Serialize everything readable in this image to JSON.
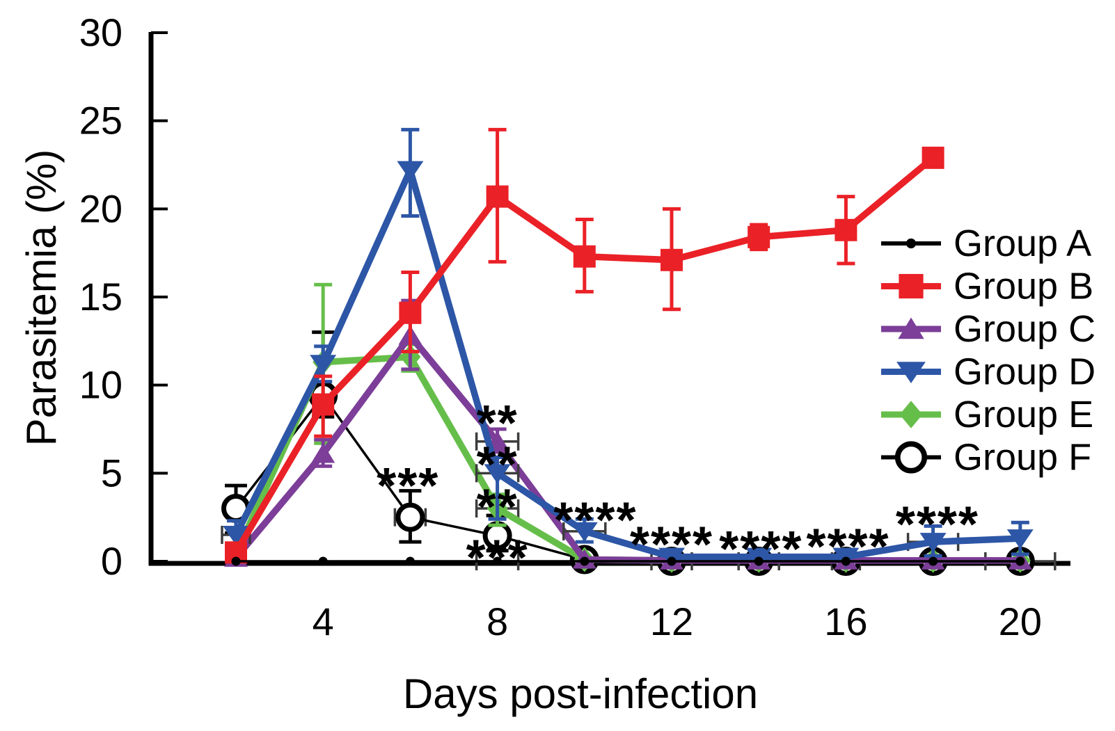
{
  "chart_data": {
    "type": "line",
    "x": [
      2,
      4,
      6,
      8,
      10,
      12,
      14,
      16,
      18,
      20
    ],
    "xlabel": "Days post-infection",
    "ylabel": "Parasitemia (%)",
    "xticks": [
      4,
      8,
      12,
      16,
      20
    ],
    "yticks": [
      0,
      5,
      10,
      15,
      20,
      25,
      30
    ],
    "ylim": [
      0,
      30
    ],
    "grid": false,
    "legend_position": "right",
    "series": [
      {
        "name": "Group A",
        "color": "#000000",
        "marker": "dot",
        "line_width": 3.5,
        "values": [
          0,
          0,
          0,
          0,
          0,
          0,
          0,
          0,
          0,
          0
        ],
        "err": [
          null,
          null,
          null,
          null,
          null,
          null,
          null,
          null,
          null,
          null
        ],
        "xerr": [
          null,
          null,
          null,
          30,
          null,
          null,
          null,
          null,
          null,
          null
        ]
      },
      {
        "name": "Group B",
        "color": "#EA2127",
        "marker": "square",
        "line_width": 9.5,
        "values": [
          0.5,
          8.9,
          14.1,
          20.7,
          17.3,
          17.1,
          18.4,
          18.8,
          22.9,
          null
        ],
        "err": [
          null,
          [
            7.1,
            10.5
          ],
          [
            11.9,
            16.4
          ],
          [
            17.0,
            24.5
          ],
          [
            15.3,
            19.4
          ],
          [
            14.3,
            20.0
          ],
          [
            17.7,
            19.1
          ],
          [
            16.9,
            20.7
          ],
          null,
          null
        ],
        "xerr": [
          null,
          null,
          null,
          null,
          null,
          null,
          null,
          null,
          null,
          null
        ]
      },
      {
        "name": "Group C",
        "color": "#7C3E98",
        "marker": "triangle-up",
        "line_width": 9.5,
        "values": [
          0.2,
          6.1,
          12.8,
          6.8,
          0.1,
          0.05,
          0.05,
          0.05,
          0.05,
          0.05
        ],
        "err": [
          null,
          [
            5.4,
            6.9
          ],
          [
            10.9,
            14.8
          ],
          [
            6.2,
            7.5
          ],
          null,
          null,
          null,
          null,
          null,
          null
        ],
        "xerr": [
          null,
          null,
          null,
          30,
          null,
          null,
          null,
          null,
          null,
          null
        ]
      },
      {
        "name": "Group D",
        "color": "#2D56A6",
        "marker": "triangle-down",
        "line_width": 9.5,
        "values": [
          1.5,
          11.2,
          22.2,
          5.0,
          1.7,
          0.25,
          0.25,
          0.25,
          1.1,
          1.3
        ],
        "err": [
          [
            0.8,
            2.3
          ],
          [
            10.2,
            12.2
          ],
          [
            19.6,
            24.5
          ],
          [
            2.4,
            5.9
          ],
          [
            1.1,
            2.4
          ],
          null,
          null,
          null,
          [
            0.3,
            2.0
          ],
          [
            0.4,
            2.2
          ]
        ],
        "xerr": [
          20,
          null,
          null,
          30,
          30,
          null,
          null,
          null,
          36,
          null
        ]
      },
      {
        "name": "Group E",
        "color": "#66BE4A",
        "marker": "diamond",
        "line_width": 9.5,
        "values": [
          0.4,
          11.3,
          11.6,
          3.0,
          0.1,
          0.05,
          0.05,
          0.05,
          0.05,
          0.05
        ],
        "err": [
          null,
          [
            6.7,
            15.7
          ],
          [
            10.8,
            12.3
          ],
          [
            2.05,
            3.8
          ],
          null,
          null,
          null,
          null,
          null,
          null
        ],
        "xerr": [
          null,
          null,
          null,
          30,
          null,
          null,
          null,
          null,
          null,
          null
        ]
      },
      {
        "name": "Group F",
        "color": "#000000",
        "marker": "open-circle",
        "line_width": 3.5,
        "values": [
          3.0,
          9.4,
          2.5,
          1.45,
          0.1,
          0,
          0,
          0,
          0,
          0
        ],
        "err": [
          [
            1.6,
            4.3
          ],
          [
            8.2,
            13.0
          ],
          [
            1.1,
            4.0
          ],
          [
            0.6,
            2.6
          ],
          null,
          null,
          null,
          null,
          null,
          null
        ],
        "xerr": [
          null,
          null,
          22,
          null,
          null,
          29,
          29,
          20,
          null,
          50
        ]
      }
    ],
    "annotations": [
      {
        "text": "***",
        "x": 5.95,
        "y": 4.9
      },
      {
        "text": "**",
        "x": 8.0,
        "y": 8.45
      },
      {
        "text": "**",
        "x": 8.0,
        "y": 6.1
      },
      {
        "text": "**",
        "x": 8.0,
        "y": 3.7
      },
      {
        "text": "***",
        "x": 8.0,
        "y": 0.8
      },
      {
        "text": "****",
        "x": 10.25,
        "y": 2.95
      },
      {
        "text": "****",
        "x": 12.0,
        "y": 1.55
      },
      {
        "text": "****",
        "x": 14.05,
        "y": 1.3
      },
      {
        "text": "****",
        "x": 16.05,
        "y": 1.45
      },
      {
        "text": "****",
        "x": 18.1,
        "y": 2.7
      }
    ]
  }
}
